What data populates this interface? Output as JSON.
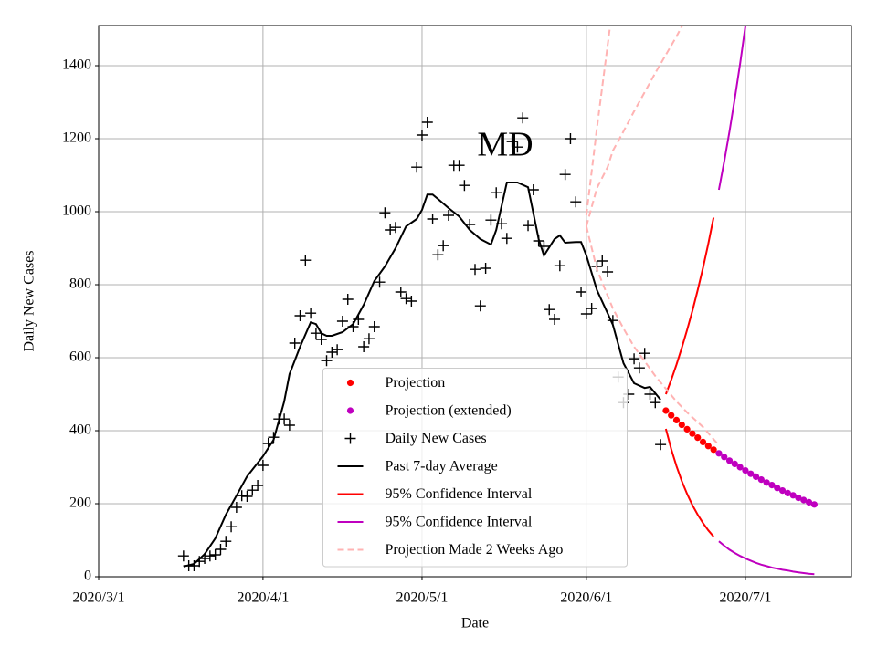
{
  "chart_data": {
    "type": "line",
    "title": "MD",
    "x_label": "Date",
    "y_label": "Daily New Cases",
    "xlim": [
      "2020/3/1",
      "2020/7/21"
    ],
    "ylim": [
      0,
      1510
    ],
    "xticks": [
      "2020/3/1",
      "2020/4/1",
      "2020/5/1",
      "2020/6/1",
      "2020/7/1"
    ],
    "yticks": [
      0,
      200,
      400,
      600,
      800,
      1000,
      1200,
      1400
    ],
    "grid": true,
    "legend": "lower center",
    "series": [
      {
        "name": "Projection",
        "color": "#ff0000",
        "marker": "dot",
        "x": [
          "2020/6/16",
          "2020/6/17",
          "2020/6/18",
          "2020/6/19",
          "2020/6/20",
          "2020/6/21",
          "2020/6/22",
          "2020/6/23",
          "2020/6/24",
          "2020/6/25"
        ],
        "values": [
          455,
          442,
          429,
          416,
          404,
          392,
          381,
          369,
          358,
          348
        ]
      },
      {
        "name": "Projection (extended)",
        "color": "#bf00bf",
        "marker": "dot",
        "x": [
          "2020/6/26",
          "2020/6/27",
          "2020/6/28",
          "2020/6/29",
          "2020/6/30",
          "2020/7/1",
          "2020/7/2",
          "2020/7/3",
          "2020/7/4",
          "2020/7/5",
          "2020/7/6",
          "2020/7/7",
          "2020/7/8",
          "2020/7/9",
          "2020/7/10",
          "2020/7/11",
          "2020/7/12",
          "2020/7/13",
          "2020/7/14"
        ],
        "values": [
          338,
          328,
          318,
          309,
          300,
          291,
          282,
          274,
          266,
          258,
          251,
          243,
          236,
          229,
          223,
          216,
          210,
          204,
          198
        ]
      },
      {
        "name": "Daily New Cases",
        "color": "#000000",
        "marker": "plus",
        "x": [
          "2020/3/17",
          "2020/3/18",
          "2020/3/19",
          "2020/3/20",
          "2020/3/21",
          "2020/3/22",
          "2020/3/23",
          "2020/3/24",
          "2020/3/25",
          "2020/3/26",
          "2020/3/27",
          "2020/3/28",
          "2020/3/29",
          "2020/3/30",
          "2020/3/31",
          "2020/4/1",
          "2020/4/2",
          "2020/4/3",
          "2020/4/4",
          "2020/4/5",
          "2020/4/6",
          "2020/4/7",
          "2020/4/8",
          "2020/4/9",
          "2020/4/10",
          "2020/4/11",
          "2020/4/12",
          "2020/4/13",
          "2020/4/14",
          "2020/4/15",
          "2020/4/16",
          "2020/4/17",
          "2020/4/18",
          "2020/4/19",
          "2020/4/20",
          "2020/4/21",
          "2020/4/22",
          "2020/4/23",
          "2020/4/24",
          "2020/4/25",
          "2020/4/26",
          "2020/4/27",
          "2020/4/28",
          "2020/4/29",
          "2020/4/30",
          "2020/5/1",
          "2020/5/2",
          "2020/5/3",
          "2020/5/4",
          "2020/5/5",
          "2020/5/6",
          "2020/5/7",
          "2020/5/8",
          "2020/5/9",
          "2020/5/10",
          "2020/5/11",
          "2020/5/12",
          "2020/5/13",
          "2020/5/14",
          "2020/5/15",
          "2020/5/16",
          "2020/5/17",
          "2020/5/18",
          "2020/5/19",
          "2020/5/20",
          "2020/5/21",
          "2020/5/22",
          "2020/5/23",
          "2020/5/24",
          "2020/5/25",
          "2020/5/26",
          "2020/5/27",
          "2020/5/28",
          "2020/5/29",
          "2020/5/30",
          "2020/5/31",
          "2020/6/1",
          "2020/6/2",
          "2020/6/3",
          "2020/6/4",
          "2020/6/5",
          "2020/6/6",
          "2020/6/7",
          "2020/6/8",
          "2020/6/9",
          "2020/6/10",
          "2020/6/11",
          "2020/6/12",
          "2020/6/13",
          "2020/6/14",
          "2020/6/15"
        ],
        "values": [
          57,
          30,
          30,
          42,
          50,
          57,
          60,
          75,
          97,
          137,
          190,
          222,
          220,
          237,
          250,
          305,
          365,
          382,
          432,
          432,
          415,
          640,
          715,
          867,
          722,
          667,
          650,
          592,
          615,
          622,
          700,
          760,
          685,
          705,
          630,
          652,
          685,
          807,
          997,
          950,
          957,
          780,
          762,
          755,
          1122,
          1210,
          1245,
          980,
          882,
          907,
          990,
          1127,
          1127,
          1072,
          965,
          842,
          742,
          845,
          977,
          1052,
          967,
          927,
          1192,
          1177,
          1257,
          962,
          1060,
          920,
          905,
          732,
          705,
          852,
          1102,
          1200,
          1027,
          780,
          720,
          735,
          850,
          865,
          835,
          702,
          547,
          477,
          500,
          597,
          572,
          612,
          500,
          477,
          362
        ]
      },
      {
        "name": "Past 7-day Average",
        "color": "#000000",
        "x": [
          "2020/3/17",
          "2020/3/19",
          "2020/3/21",
          "2020/3/23",
          "2020/3/25",
          "2020/3/27",
          "2020/3/29",
          "2020/4/1",
          "2020/4/3",
          "2020/4/5",
          "2020/4/6",
          "2020/4/8",
          "2020/4/10",
          "2020/4/11",
          "2020/4/12",
          "2020/4/13",
          "2020/4/14",
          "2020/4/16",
          "2020/4/18",
          "2020/4/20",
          "2020/4/22",
          "2020/4/24",
          "2020/4/26",
          "2020/4/28",
          "2020/4/30",
          "2020/5/1",
          "2020/5/2",
          "2020/5/3",
          "2020/5/4",
          "2020/5/6",
          "2020/5/8",
          "2020/5/10",
          "2020/5/12",
          "2020/5/14",
          "2020/5/15",
          "2020/5/17",
          "2020/5/19",
          "2020/5/21",
          "2020/5/23",
          "2020/5/24",
          "2020/5/26",
          "2020/5/27",
          "2020/5/28",
          "2020/5/30",
          "2020/5/31",
          "2020/6/1",
          "2020/6/3",
          "2020/6/5",
          "2020/6/6",
          "2020/6/8",
          "2020/6/10",
          "2020/6/12",
          "2020/6/13",
          "2020/6/15"
        ],
        "values": [
          28,
          35,
          62,
          105,
          170,
          222,
          275,
          330,
          375,
          480,
          555,
          630,
          697,
          692,
          667,
          660,
          660,
          670,
          692,
          745,
          810,
          850,
          900,
          960,
          980,
          1005,
          1047,
          1047,
          1035,
          1010,
          987,
          950,
          925,
          910,
          950,
          1080,
          1080,
          1067,
          925,
          880,
          925,
          935,
          915,
          917,
          917,
          880,
          785,
          722,
          690,
          585,
          530,
          517,
          520,
          485
        ]
      },
      {
        "name": "95% Confidence Interval",
        "color": "#ff0000",
        "x": [
          "2020/6/16",
          "2020/6/17",
          "2020/6/18",
          "2020/6/19",
          "2020/6/20",
          "2020/6/21",
          "2020/6/22",
          "2020/6/23",
          "2020/6/24",
          "2020/6/25"
        ],
        "upper": [
          500,
          539,
          581,
          627,
          676,
          728,
          785,
          846,
          912,
          984
        ],
        "lower": [
          405,
          350,
          303,
          262,
          227,
          196,
          170,
          147,
          127,
          110
        ]
      },
      {
        "name": "95% Confidence Interval",
        "color": "#bf00bf",
        "x": [
          "2020/6/26",
          "2020/6/27",
          "2020/6/28",
          "2020/6/29",
          "2020/6/30",
          "2020/7/1",
          "2020/7/2",
          "2020/7/3",
          "2020/7/4",
          "2020/7/5",
          "2020/7/6",
          "2020/7/7",
          "2020/7/8",
          "2020/7/9",
          "2020/7/10",
          "2020/7/11",
          "2020/7/12",
          "2020/7/13",
          "2020/7/14"
        ],
        "upper": [
          1060,
          1137,
          1220,
          1310,
          1405,
          1508,
          null,
          null,
          null,
          null,
          null,
          null,
          null,
          null,
          null,
          null,
          null,
          null,
          null
        ],
        "lower": [
          97,
          85,
          74,
          65,
          57,
          50,
          44,
          38,
          33,
          29,
          25,
          22,
          19,
          17,
          14,
          12,
          10,
          8,
          7
        ]
      },
      {
        "name": "Projection Made 2 Weeks Ago",
        "color": "#ffb3b3",
        "line_style": "dashed",
        "x": [
          "2020/6/1",
          "2020/6/3",
          "2020/6/5",
          "2020/6/6",
          "2020/6/8",
          "2020/6/10",
          "2020/6/14",
          "2020/6/18",
          "2020/6/20",
          "2020/6/23",
          "2020/6/26"
        ],
        "values": [
          960,
          1065,
          1122,
          1167,
          1220,
          1275,
          1380,
          1480,
          1535,
          null,
          null
        ],
        "upper": [
          990,
          1230,
          1455,
          1567,
          null,
          null,
          null,
          null,
          null,
          null,
          null
        ],
        "lower": [
          960,
          842,
          770,
          735,
          680,
          630,
          550,
          480,
          450,
          410,
          360
        ]
      }
    ]
  }
}
